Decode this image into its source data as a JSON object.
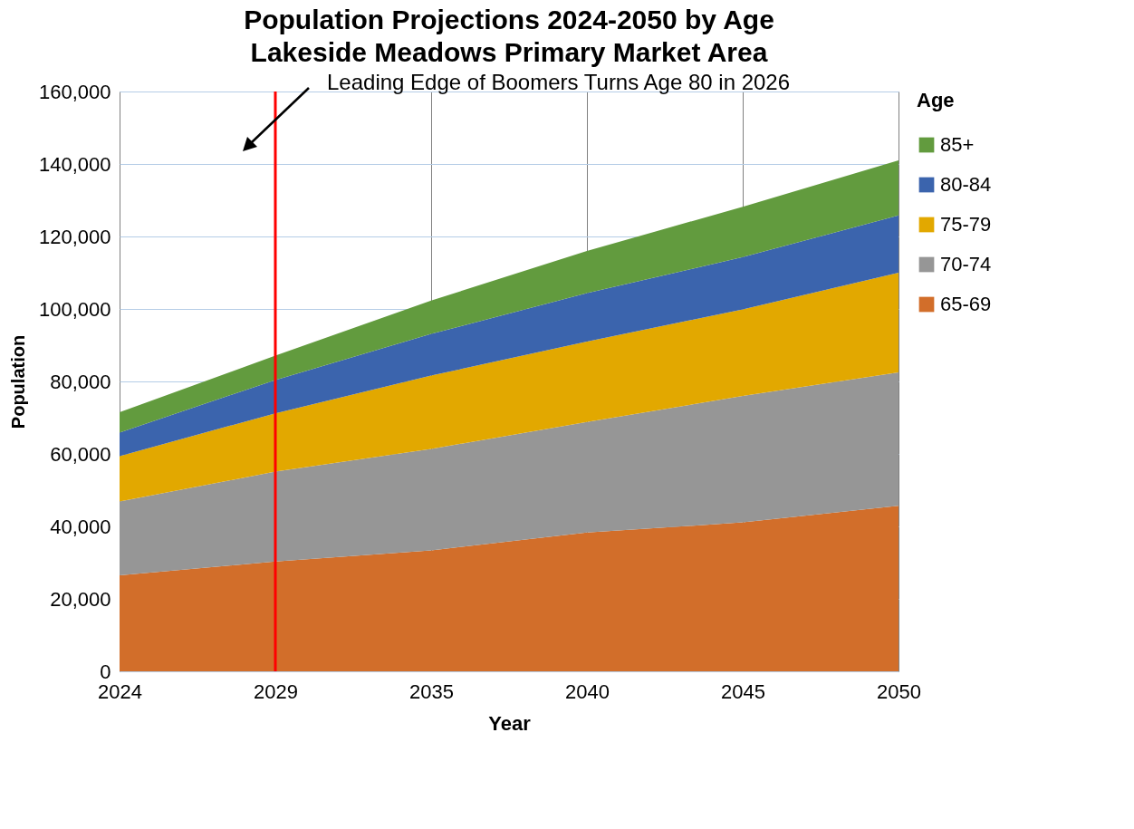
{
  "chart_data": {
    "type": "area",
    "title": "Population Projections 2024-2050 by Age",
    "subtitle": "Lakeside Meadows Primary Market Area",
    "xlabel": "Year",
    "ylabel": "Population",
    "legend_title": "Age",
    "stacked": true,
    "grid": true,
    "legend": "right",
    "categories": [
      "2024",
      "2029",
      "2035",
      "2040",
      "2045",
      "2050"
    ],
    "ylim": [
      0,
      160000
    ],
    "yticks": [
      {
        "value": 0,
        "label": "0"
      },
      {
        "value": 20000,
        "label": "20,000"
      },
      {
        "value": 40000,
        "label": "40,000"
      },
      {
        "value": 60000,
        "label": "60,000"
      },
      {
        "value": 80000,
        "label": "80,000"
      },
      {
        "value": 100000,
        "label": "100,000"
      },
      {
        "value": 120000,
        "label": "120,000"
      },
      {
        "value": 140000,
        "label": "140,000"
      },
      {
        "value": 160000,
        "label": "160,000"
      }
    ],
    "series": [
      {
        "name": "65-69",
        "color": "#d26e2a",
        "values": [
          26500,
          30300,
          33400,
          38300,
          41100,
          45700
        ]
      },
      {
        "name": "70-74",
        "color": "#969696",
        "values": [
          20400,
          24800,
          28000,
          30500,
          34900,
          36800
        ]
      },
      {
        "name": "75-79",
        "color": "#e2a800",
        "values": [
          12500,
          16100,
          20200,
          22200,
          23900,
          27500
        ]
      },
      {
        "name": "80-84",
        "color": "#3b64ad",
        "values": [
          6500,
          9200,
          11500,
          13400,
          14400,
          15800
        ]
      },
      {
        "name": "85+",
        "color": "#629b3e",
        "values": [
          5600,
          6700,
          9200,
          11600,
          13900,
          15200
        ]
      }
    ],
    "ref_lines": [
      {
        "axis": "x",
        "value": "2029",
        "color": "#ff0000"
      }
    ],
    "annotations": [
      "Leading Edge of Boomers Turns Age 80 in 2026"
    ]
  }
}
